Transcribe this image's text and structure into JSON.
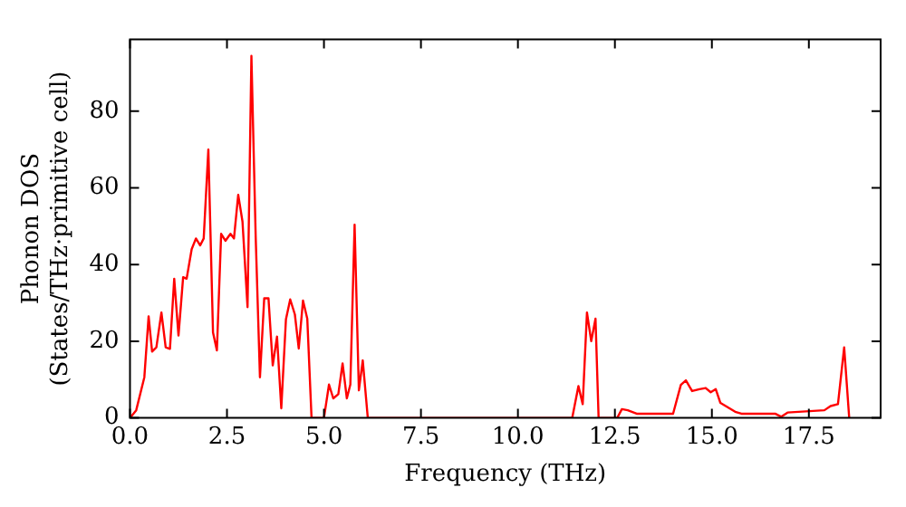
{
  "chart_data": {
    "type": "line",
    "xlabel": "Frequency (THz)",
    "ylabel": "Phonon DOS\n(States/THz·primitive cell)",
    "x": [
      0,
      0.16,
      0.37,
      0.48,
      0.57,
      0.68,
      0.81,
      0.92,
      1.03,
      1.14,
      1.25,
      1.37,
      1.46,
      1.59,
      1.7,
      1.81,
      1.9,
      2.02,
      2.14,
      2.24,
      2.35,
      2.46,
      2.59,
      2.68,
      2.79,
      2.9,
      3.03,
      3.13,
      3.24,
      3.35,
      3.46,
      3.57,
      3.68,
      3.79,
      3.9,
      4.02,
      4.13,
      4.25,
      4.35,
      4.46,
      4.57,
      4.68,
      5.0,
      5.13,
      5.24,
      5.37,
      5.48,
      5.59,
      5.68,
      5.79,
      5.9,
      6.0,
      6.13,
      11.4,
      11.56,
      11.67,
      11.78,
      11.89,
      12.0,
      12.08,
      12.56,
      12.68,
      12.83,
      13.06,
      14.0,
      14.2,
      14.33,
      14.49,
      14.68,
      14.84,
      14.97,
      15.1,
      15.22,
      15.6,
      15.76,
      16.63,
      16.79,
      16.95,
      17.9,
      18.06,
      18.25,
      18.41,
      18.54
    ],
    "series": [
      {
        "color": "#ff0000",
        "values": [
          0,
          2,
          10.6,
          26.5,
          17.3,
          18.4,
          27.5,
          18.4,
          18,
          36.3,
          21.5,
          36.7,
          36.3,
          44,
          46.8,
          45,
          46.8,
          70,
          22.3,
          17.6,
          48,
          46.2,
          48,
          46.8,
          58.2,
          51.2,
          28.9,
          94.4,
          47.3,
          10.6,
          31.2,
          31.2,
          13.7,
          21.2,
          2.5,
          25.7,
          30.9,
          27,
          18.1,
          30.6,
          25.9,
          0,
          0,
          8.7,
          5.1,
          6.2,
          14.2,
          5.1,
          8.7,
          50.4,
          7.2,
          15,
          0,
          0,
          8.3,
          3.6,
          27.5,
          20,
          25.9,
          0,
          0,
          2.3,
          2,
          1.1,
          1.1,
          8.6,
          9.8,
          7,
          7.5,
          7.8,
          6.7,
          7.5,
          3.9,
          1.6,
          1.1,
          1.1,
          0.3,
          1.4,
          2,
          3.1,
          3.6,
          18.4,
          0
        ]
      }
    ],
    "xlim": [
      0,
      19.35
    ],
    "ylim": [
      0,
      98.7
    ],
    "xticks": [
      {
        "value": 0,
        "label": "0.0"
      },
      {
        "value": 2.5,
        "label": "2.5"
      },
      {
        "value": 5,
        "label": "5.0"
      },
      {
        "value": 7.5,
        "label": "7.5"
      },
      {
        "value": 10,
        "label": "10.0"
      },
      {
        "value": 12.5,
        "label": "12.5"
      },
      {
        "value": 15,
        "label": "15.0"
      },
      {
        "value": 17.5,
        "label": "17.5"
      }
    ],
    "yticks": [
      0,
      20,
      40,
      60,
      80
    ],
    "grid": false,
    "legend": false,
    "marker": "none",
    "line_style": "solid"
  }
}
